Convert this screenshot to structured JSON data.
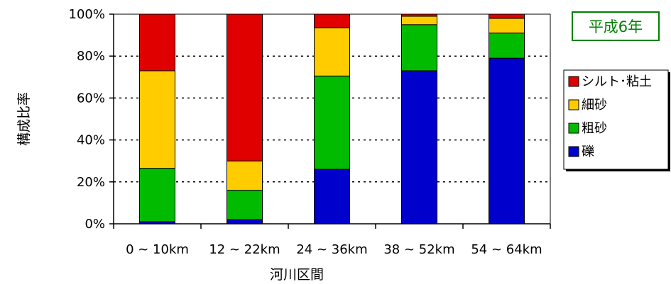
{
  "chart_data": {
    "type": "bar",
    "stacked": true,
    "percent_stacked": true,
    "title": "",
    "badge": "平成6年",
    "xlabel": "河川区間",
    "ylabel": "構成比率",
    "ylim": [
      0,
      100
    ],
    "yticks": [
      "0%",
      "20%",
      "40%",
      "60%",
      "80%",
      "100%"
    ],
    "ytick_values": [
      0,
      20,
      40,
      60,
      80,
      100
    ],
    "grid": true,
    "legend_position": "right",
    "categories": [
      "0 ~ 10km",
      "12 ~ 22km",
      "24 ~ 36km",
      "38 ~ 52km",
      "54 ~ 64km"
    ],
    "series": [
      {
        "name": "礫",
        "color": "#0000CC",
        "values": [
          1,
          2,
          26,
          73,
          79
        ]
      },
      {
        "name": "粗砂",
        "color": "#00BB00",
        "values": [
          25.5,
          14,
          44.5,
          22,
          12
        ]
      },
      {
        "name": "細砂",
        "color": "#FFCC00",
        "values": [
          46.5,
          14,
          23,
          4,
          7
        ]
      },
      {
        "name": "シルト･粘土",
        "color": "#E00000",
        "values": [
          27,
          70,
          6.5,
          1,
          2
        ]
      }
    ]
  }
}
